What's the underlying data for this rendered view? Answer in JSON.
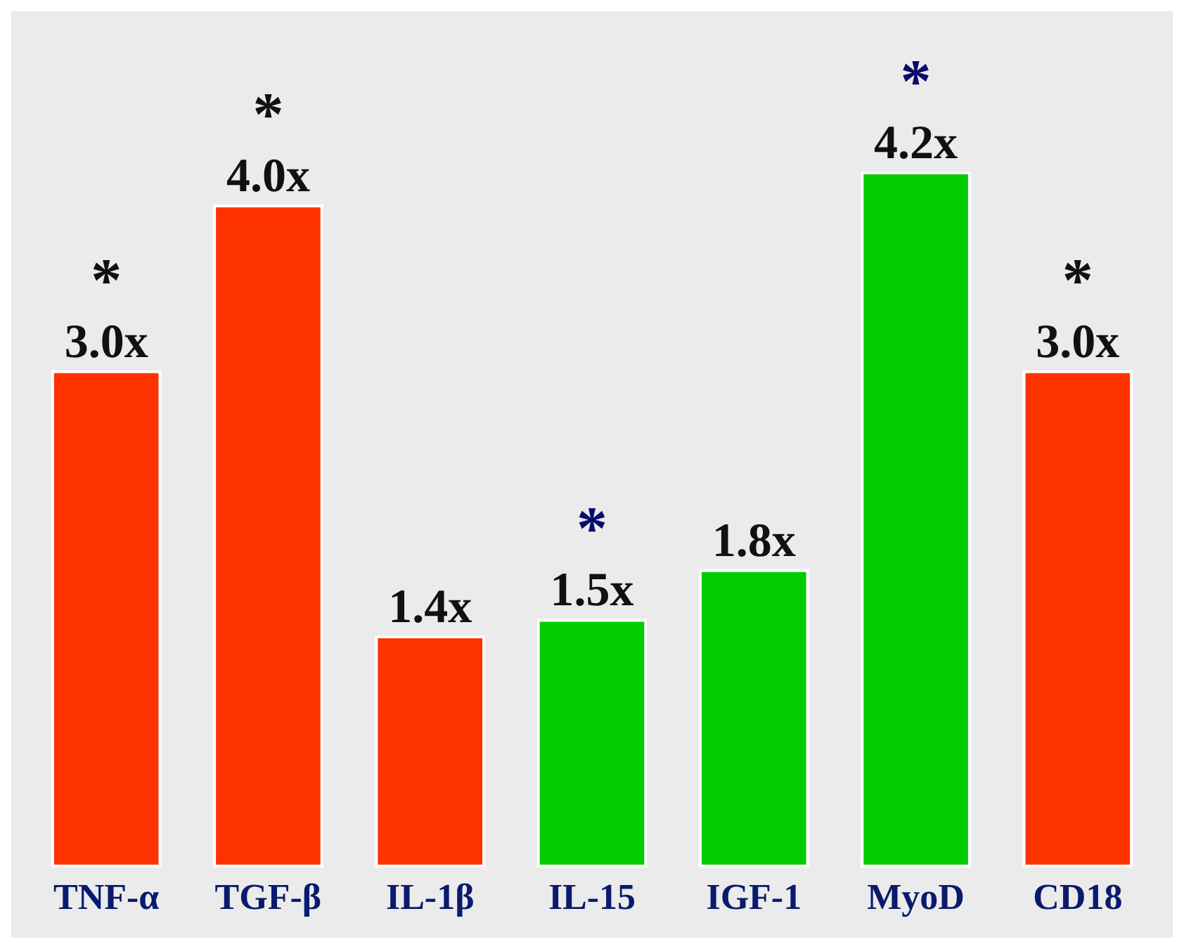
{
  "chart_data": {
    "type": "bar",
    "categories": [
      "TNF-α",
      "TGF-β",
      "IL-1β",
      "IL-15",
      "IGF-1",
      "MyoD",
      "CD18"
    ],
    "values": [
      3.0,
      4.0,
      1.4,
      1.5,
      1.8,
      4.2,
      3.0
    ],
    "colors": [
      "#ff3300",
      "#ff3300",
      "#ff3300",
      "#00cc00",
      "#00cc00",
      "#00cc00",
      "#ff3300"
    ],
    "value_labels": [
      "3.0x",
      "4.0x",
      "1.4x",
      "1.5x",
      "1.8x",
      "4.2x",
      "3.0x"
    ],
    "annotations": [
      {
        "text": "*",
        "x": "TNF-α",
        "y": 3.0
      },
      {
        "text": "*",
        "x": "TGF-β",
        "y": 4.0
      },
      {
        "text": "*",
        "x": "IL-15",
        "y": 1.5
      },
      {
        "text": "*",
        "x": "MyoD",
        "y": 4.2
      },
      {
        "text": "*",
        "x": "CD18",
        "y": 3.0
      }
    ]
  }
}
